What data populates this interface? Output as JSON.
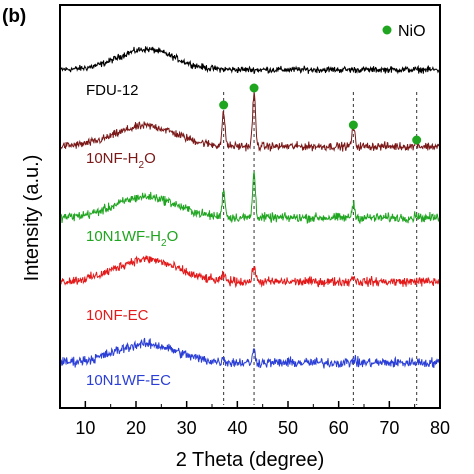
{
  "chart_data": {
    "type": "line",
    "panel_label": "(b)",
    "xlabel": "2 Theta (degree)",
    "ylabel": "Intensity (a.u.)",
    "xlim": [
      5,
      80
    ],
    "xticks": [
      10,
      20,
      30,
      40,
      50,
      60,
      70,
      80
    ],
    "y_ticks_shown": false,
    "legend": {
      "label": "NiO",
      "marker": "filled-circle",
      "color": "#1fa51f",
      "placement": "top-right"
    },
    "reference_lines": [
      {
        "x": 37.3,
        "style": "dashed",
        "color": "#333333"
      },
      {
        "x": 43.3,
        "style": "dashed",
        "color": "#333333"
      },
      {
        "x": 62.9,
        "style": "dashed",
        "color": "#333333"
      },
      {
        "x": 75.4,
        "style": "dashed",
        "color": "#333333"
      }
    ],
    "nio_markers": [
      37.3,
      43.3,
      62.9,
      75.4
    ],
    "series": [
      {
        "name": "FDU-12",
        "label_main": "FDU-12",
        "label_sub": "",
        "label_tail": "",
        "color": "#000000",
        "broad_peak": {
          "x": 22,
          "width": 5.5,
          "amp": 0.6
        },
        "peaks": [],
        "baseline": 0.45,
        "noise": 0.14
      },
      {
        "name": "10NF-H2O",
        "label_main": "10NF-H",
        "label_sub": "2",
        "label_tail": "O",
        "color": "#7b1818",
        "broad_peak": {
          "x": 22,
          "width": 6,
          "amp": 0.6
        },
        "peaks": [
          {
            "x": 37.3,
            "amp": 0.95
          },
          {
            "x": 43.3,
            "amp": 1.55
          },
          {
            "x": 62.9,
            "amp": 0.55
          },
          {
            "x": 75.4,
            "amp": 0.12
          }
        ],
        "baseline": 0.4,
        "noise": 0.18
      },
      {
        "name": "10N1WF-H2O",
        "label_main": "10N1WF-H",
        "label_sub": "2",
        "label_tail": "O",
        "color": "#1fa51f",
        "broad_peak": {
          "x": 22,
          "width": 6,
          "amp": 0.62
        },
        "peaks": [
          {
            "x": 37.3,
            "amp": 0.8
          },
          {
            "x": 43.3,
            "amp": 1.3
          },
          {
            "x": 62.9,
            "amp": 0.4
          },
          {
            "x": 75.4,
            "amp": 0.1
          }
        ],
        "baseline": 0.42,
        "noise": 0.2
      },
      {
        "name": "10NF-EC",
        "label_main": "10NF-EC",
        "label_sub": "",
        "label_tail": "",
        "color": "#e41a1a",
        "broad_peak": {
          "x": 22,
          "width": 6,
          "amp": 0.66
        },
        "peaks": [
          {
            "x": 37.3,
            "amp": 0.18
          },
          {
            "x": 43.3,
            "amp": 0.48
          },
          {
            "x": 62.9,
            "amp": 0.18
          },
          {
            "x": 75.4,
            "amp": 0.05
          }
        ],
        "baseline": 0.42,
        "noise": 0.2
      },
      {
        "name": "10N1WF-EC",
        "label_main": "10N1WF-EC",
        "label_sub": "",
        "label_tail": "",
        "color": "#2b3fd6",
        "broad_peak": {
          "x": 22,
          "width": 6,
          "amp": 0.55
        },
        "peaks": [
          {
            "x": 37.3,
            "amp": 0.1
          },
          {
            "x": 43.3,
            "amp": 0.35
          },
          {
            "x": 62.9,
            "amp": 0.1
          },
          {
            "x": 75.4,
            "amp": 0.04
          }
        ],
        "baseline": 0.42,
        "noise": 0.22
      }
    ]
  }
}
